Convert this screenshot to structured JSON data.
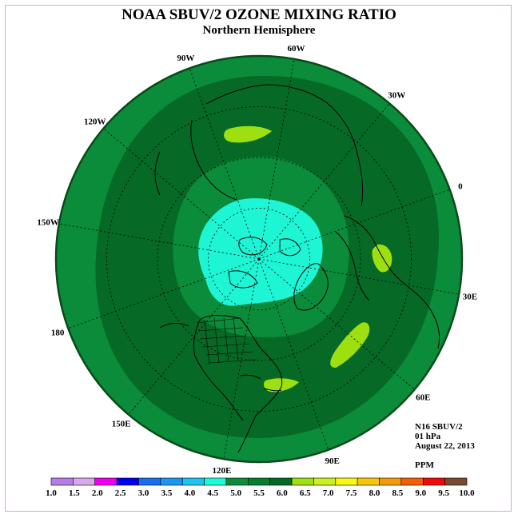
{
  "title": "NOAA SBUV/2 OZONE MIXING RATIO",
  "subtitle": "Northern Hemisphere",
  "info": {
    "instrument": "N16 SBUV/2",
    "pressure": "01 hPa",
    "date": "August 22, 2013",
    "units": "PPM"
  },
  "longitude_labels": [
    {
      "text": "90E",
      "lon": 90
    },
    {
      "text": "60E",
      "lon": 60
    },
    {
      "text": "30E",
      "lon": 30
    },
    {
      "text": "0",
      "lon": 0
    },
    {
      "text": "30W",
      "lon": -30
    },
    {
      "text": "60W",
      "lon": -60
    },
    {
      "text": "90W",
      "lon": -90
    },
    {
      "text": "120W",
      "lon": -120
    },
    {
      "text": "150W",
      "lon": -150
    },
    {
      "text": "180",
      "lon": 180
    },
    {
      "text": "150E",
      "lon": 150
    },
    {
      "text": "120E",
      "lon": 120
    }
  ],
  "colorbar": {
    "ticks": [
      "1.0",
      "1.5",
      "2.0",
      "2.5",
      "3.0",
      "3.5",
      "4.0",
      "4.5",
      "5.0",
      "5.5",
      "6.0",
      "6.5",
      "7.0",
      "7.5",
      "8.0",
      "8.5",
      "9.0",
      "9.5",
      "10.0"
    ],
    "colors": [
      "#b87be8",
      "#d9a6f0",
      "#ee00ee",
      "#0000f0",
      "#1a6fe8",
      "#1e96f0",
      "#1ec3ef",
      "#1efad9",
      "#0a8c3a",
      "#077e2e",
      "#066a26",
      "#9edf10",
      "#c9f020",
      "#f8f810",
      "#f5c60a",
      "#f39a0a",
      "#f0600a",
      "#ee0a0a",
      "#7a4a30"
    ]
  },
  "map_colors": {
    "ring_outer": "#0a8c3a",
    "ring_mid": "#066a26",
    "ring_inner": "#0a8c3a",
    "polar": "#1ef5d5",
    "high": "#9edf10",
    "coast": "#000000",
    "border": "#0a4a1a"
  }
}
